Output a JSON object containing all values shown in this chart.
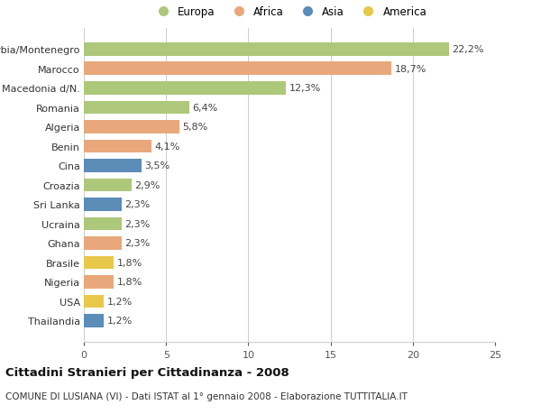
{
  "categories": [
    "Thailandia",
    "USA",
    "Nigeria",
    "Brasile",
    "Ghana",
    "Ucraina",
    "Sri Lanka",
    "Croazia",
    "Cina",
    "Benin",
    "Algeria",
    "Romania",
    "Macedonia d/N.",
    "Marocco",
    "Serbia/Montenegro"
  ],
  "values": [
    1.2,
    1.2,
    1.8,
    1.8,
    2.3,
    2.3,
    2.3,
    2.9,
    3.5,
    4.1,
    5.8,
    6.4,
    12.3,
    18.7,
    22.2
  ],
  "continents": [
    "Asia",
    "America",
    "Africa",
    "America",
    "Africa",
    "Europa",
    "Asia",
    "Europa",
    "Asia",
    "Africa",
    "Africa",
    "Europa",
    "Europa",
    "Africa",
    "Europa"
  ],
  "labels": [
    "1,2%",
    "1,2%",
    "1,8%",
    "1,8%",
    "2,3%",
    "2,3%",
    "2,3%",
    "2,9%",
    "3,5%",
    "4,1%",
    "5,8%",
    "6,4%",
    "12,3%",
    "18,7%",
    "22,2%"
  ],
  "colors": {
    "Europa": "#adc87a",
    "Africa": "#e8a87c",
    "Asia": "#5b8db8",
    "America": "#e8c84a"
  },
  "title": "Cittadini Stranieri per Cittadinanza - 2008",
  "subtitle": "COMUNE DI LUSIANA (VI) - Dati ISTAT al 1° gennaio 2008 - Elaborazione TUTTITALIA.IT",
  "xlim": [
    0,
    25
  ],
  "xticks": [
    0,
    5,
    10,
    15,
    20,
    25
  ],
  "background_color": "#ffffff",
  "grid_color": "#cccccc",
  "bar_height": 0.68,
  "label_fontsize": 8.0,
  "tick_fontsize": 8.0,
  "title_fontsize": 9.5,
  "subtitle_fontsize": 7.5,
  "legend_order": [
    "Europa",
    "Africa",
    "Asia",
    "America"
  ]
}
